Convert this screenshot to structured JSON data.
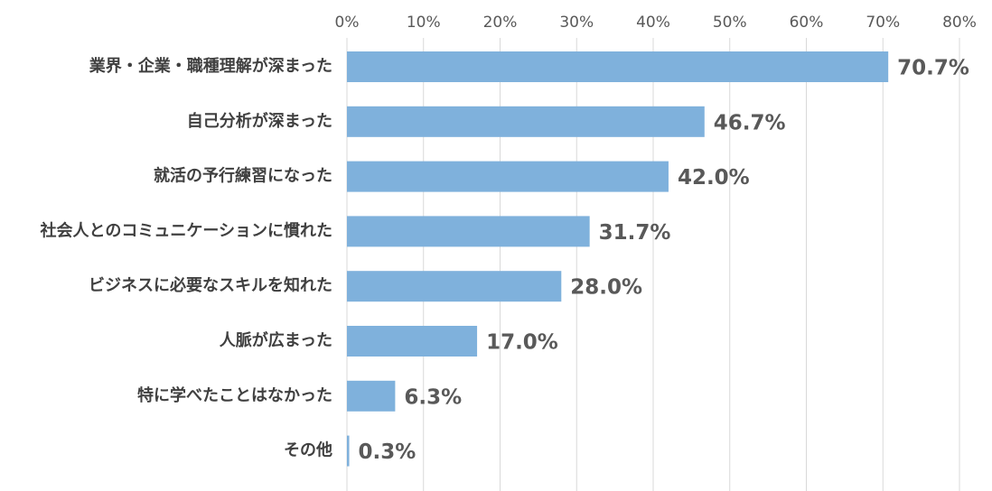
{
  "chart_data": {
    "type": "bar",
    "orientation": "horizontal",
    "categories": [
      "業界・企業・職種理解が深まった",
      "自己分析が深まった",
      "就活の予行練習になった",
      "社会人とのコミュニケーションに慣れた",
      "ビジネスに必要なスキルを知れた",
      "人脈が広まった",
      "特に学べたことはなかった",
      "その他"
    ],
    "values": [
      70.7,
      46.7,
      42.0,
      31.7,
      28.0,
      17.0,
      6.3,
      0.3
    ],
    "value_labels": [
      "70.7%",
      "46.7%",
      "42.0%",
      "31.7%",
      "28.0%",
      "17.0%",
      "6.3%",
      "0.3%"
    ],
    "color": "#7fb1dc",
    "xlim": [
      0,
      80
    ],
    "xticks": [
      {
        "value": 0,
        "label": "0%"
      },
      {
        "value": 10,
        "label": "10%"
      },
      {
        "value": 20,
        "label": "20%"
      },
      {
        "value": 30,
        "label": "30%"
      },
      {
        "value": 40,
        "label": "40%"
      },
      {
        "value": 50,
        "label": "50%"
      },
      {
        "value": 60,
        "label": "60%"
      },
      {
        "value": 70,
        "label": "70%"
      },
      {
        "value": 80,
        "label": "80%"
      }
    ],
    "grid": true
  }
}
